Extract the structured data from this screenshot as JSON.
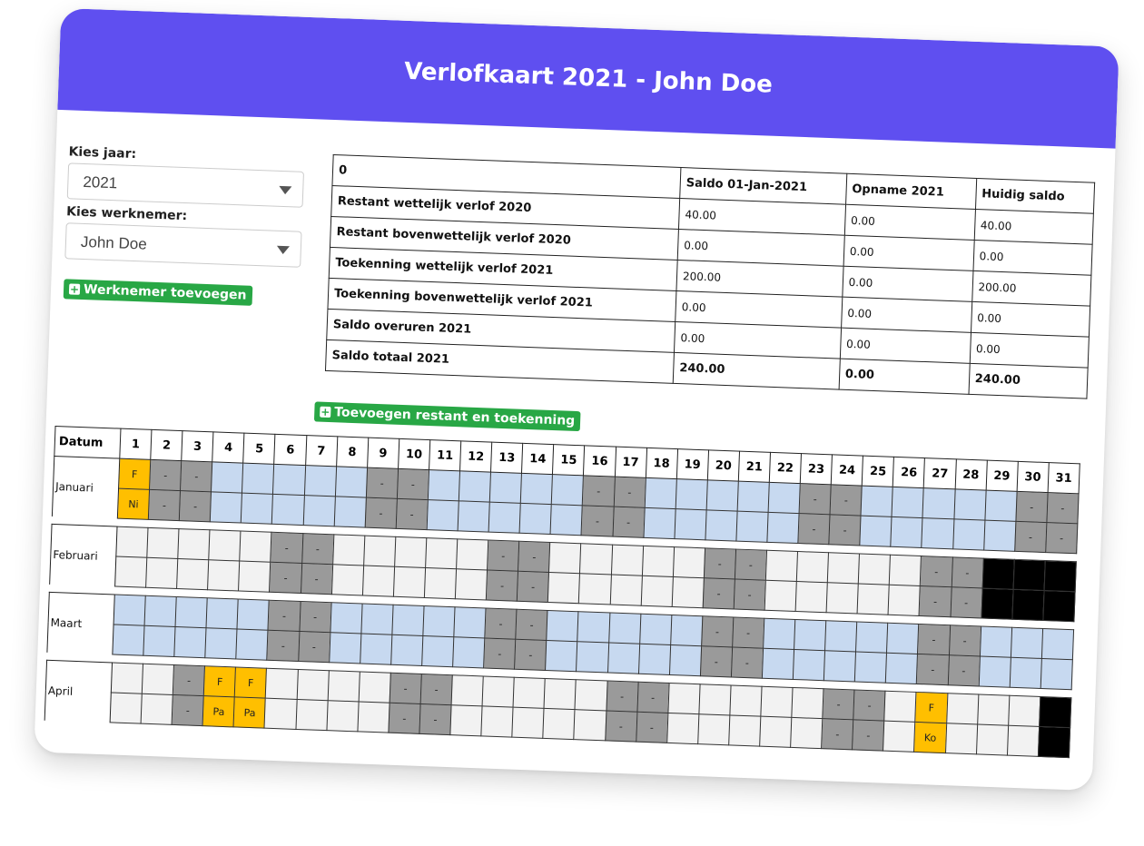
{
  "header": {
    "title": "Verlofkaart 2021 - John Doe",
    "bg": "#5f4ff0"
  },
  "form": {
    "year_label": "Kies jaar:",
    "year_value": "2021",
    "employee_label": "Kies werknemer:",
    "employee_value": "John Doe",
    "add_employee_label": "Werknemer toevoegen"
  },
  "summary": {
    "corner": "0",
    "columns": [
      "Saldo 01-Jan-2021",
      "Opname 2021",
      "Huidig saldo"
    ],
    "rows": [
      {
        "label": "Restant wettelijk verlof 2020",
        "values": [
          "40.00",
          "0.00",
          "40.00"
        ]
      },
      {
        "label": "Restant bovenwettelijk verlof 2020",
        "values": [
          "0.00",
          "0.00",
          "0.00"
        ]
      },
      {
        "label": "Toekenning wettelijk verlof 2021",
        "values": [
          "200.00",
          "0.00",
          "200.00"
        ]
      },
      {
        "label": "Toekenning bovenwettelijk verlof 2021",
        "values": [
          "0.00",
          "0.00",
          "0.00"
        ]
      },
      {
        "label": "Saldo overuren 2021",
        "values": [
          "0.00",
          "0.00",
          "0.00"
        ]
      },
      {
        "label": "Saldo totaal 2021",
        "values": [
          "240.00",
          "0.00",
          "240.00"
        ],
        "total": true
      }
    ],
    "add_label": "Toevoegen restant en toekenning"
  },
  "calendar": {
    "date_header": "Datum",
    "days": [
      "1",
      "2",
      "3",
      "4",
      "5",
      "6",
      "7",
      "8",
      "9",
      "10",
      "11",
      "12",
      "13",
      "14",
      "15",
      "16",
      "17",
      "18",
      "19",
      "20",
      "21",
      "22",
      "23",
      "24",
      "25",
      "26",
      "27",
      "28",
      "29",
      "30",
      "31"
    ],
    "colors": {
      "workday": "#f2f2f2",
      "month_tint": "#c7d9f0",
      "weekend": "#9a9a9a",
      "holiday": "#ffbf00",
      "no_day": "#000000"
    },
    "months": [
      {
        "name": "Januari",
        "top": [
          "y:F",
          "g:-",
          "g:-",
          "b",
          "b",
          "b",
          "b",
          "b",
          "g:-",
          "g:-",
          "b",
          "b",
          "b",
          "b",
          "b",
          "g:-",
          "g:-",
          "b",
          "b",
          "b",
          "b",
          "b",
          "g:-",
          "g:-",
          "b",
          "b",
          "b",
          "b",
          "b",
          "g:-",
          "g:-"
        ],
        "bottom": [
          "y:Ni",
          "g:-",
          "g:-",
          "b",
          "b",
          "b",
          "b",
          "b",
          "g:-",
          "g:-",
          "b",
          "b",
          "b",
          "b",
          "b",
          "g:-",
          "g:-",
          "b",
          "b",
          "b",
          "b",
          "b",
          "g:-",
          "g:-",
          "b",
          "b",
          "b",
          "b",
          "b",
          "g:-",
          "g:-"
        ]
      },
      {
        "name": "Februari",
        "top": [
          "w",
          "w",
          "w",
          "w",
          "w",
          "g:-",
          "g:-",
          "w",
          "w",
          "w",
          "w",
          "w",
          "g:-",
          "g:-",
          "w",
          "w",
          "w",
          "w",
          "w",
          "g:-",
          "g:-",
          "w",
          "w",
          "w",
          "w",
          "w",
          "g:-",
          "g:-",
          "k",
          "k",
          "k"
        ],
        "bottom": [
          "w",
          "w",
          "w",
          "w",
          "w",
          "g:-",
          "g:-",
          "w",
          "w",
          "w",
          "w",
          "w",
          "g:-",
          "g:-",
          "w",
          "w",
          "w",
          "w",
          "w",
          "g:-",
          "g:-",
          "w",
          "w",
          "w",
          "w",
          "w",
          "g:-",
          "g:-",
          "k",
          "k",
          "k"
        ]
      },
      {
        "name": "Maart",
        "top": [
          "b",
          "b",
          "b",
          "b",
          "b",
          "g:-",
          "g:-",
          "b",
          "b",
          "b",
          "b",
          "b",
          "g:-",
          "g:-",
          "b",
          "b",
          "b",
          "b",
          "b",
          "g:-",
          "g:-",
          "b",
          "b",
          "b",
          "b",
          "b",
          "g:-",
          "g:-",
          "b",
          "b",
          "b"
        ],
        "bottom": [
          "b",
          "b",
          "b",
          "b",
          "b",
          "g:-",
          "g:-",
          "b",
          "b",
          "b",
          "b",
          "b",
          "g:-",
          "g:-",
          "b",
          "b",
          "b",
          "b",
          "b",
          "g:-",
          "g:-",
          "b",
          "b",
          "b",
          "b",
          "b",
          "g:-",
          "g:-",
          "b",
          "b",
          "b"
        ]
      },
      {
        "name": "April",
        "top": [
          "w",
          "w",
          "g:-",
          "y:F",
          "y:F",
          "w",
          "w",
          "w",
          "w",
          "g:-",
          "g:-",
          "w",
          "w",
          "w",
          "w",
          "w",
          "g:-",
          "g:-",
          "w",
          "w",
          "w",
          "w",
          "w",
          "g:-",
          "g:-",
          "w",
          "y:F",
          "w",
          "w",
          "w",
          "k"
        ],
        "bottom": [
          "w",
          "w",
          "g:-",
          "y:Pa",
          "y:Pa",
          "w",
          "w",
          "w",
          "w",
          "g:-",
          "g:-",
          "w",
          "w",
          "w",
          "w",
          "w",
          "g:-",
          "g:-",
          "w",
          "w",
          "w",
          "w",
          "w",
          "g:-",
          "g:-",
          "w",
          "y:Ko",
          "w",
          "w",
          "w",
          "k"
        ]
      }
    ]
  }
}
